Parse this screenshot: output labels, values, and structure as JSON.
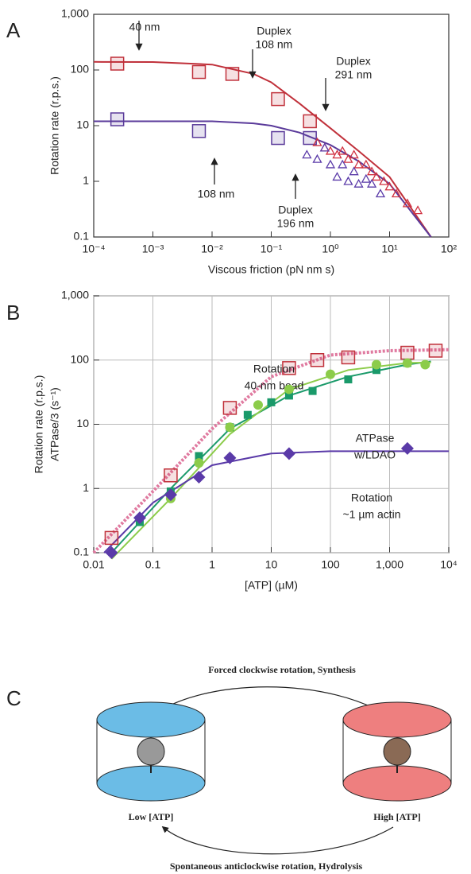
{
  "chart_data": [
    {
      "type": "scatter",
      "panel": "A",
      "ylabel": "Rotation rate (r.p.s.)",
      "xlabel": "Viscous friction (pN nm s)",
      "xscale": "log",
      "yscale": "log",
      "xlim": [
        0.0001,
        100
      ],
      "ylim": [
        0.1,
        1000
      ],
      "xticks": [
        {
          "value": 0.0001,
          "label": "10⁻⁴"
        },
        {
          "value": 0.001,
          "label": "10⁻³"
        },
        {
          "value": 0.01,
          "label": "10⁻²"
        },
        {
          "value": 0.1,
          "label": "10⁻¹"
        },
        {
          "value": 1,
          "label": "10⁰"
        },
        {
          "value": 10,
          "label": "10¹"
        },
        {
          "value": 100,
          "label": "10²"
        }
      ],
      "yticks": [
        0.1,
        1,
        10,
        100,
        {
          "value": 1000,
          "label": "1,000"
        }
      ],
      "grid": false,
      "series": [
        {
          "color": "#c0303a",
          "marker": "line",
          "x": [
            0.0001,
            0.001,
            0.01,
            0.05,
            0.1,
            0.3,
            1,
            3,
            10,
            50
          ],
          "values": [
            140,
            139,
            125,
            85,
            60,
            25,
            9,
            3.5,
            1.2,
            0.1
          ]
        },
        {
          "color": "#5a3a9a",
          "marker": "line",
          "x": [
            0.0001,
            0.001,
            0.01,
            0.05,
            0.1,
            0.3,
            1,
            3,
            10,
            50
          ],
          "values": [
            12,
            12,
            12,
            11,
            10,
            7.5,
            4.5,
            2.3,
            0.9,
            0.1
          ]
        },
        {
          "color": "#c0303a",
          "marker": "open-square",
          "x": [
            0.00025,
            0.006,
            0.022,
            0.13,
            0.45
          ],
          "values": [
            130,
            92,
            85,
            30,
            12
          ]
        },
        {
          "color": "#5a3a9a",
          "marker": "open-square",
          "x": [
            0.00025,
            0.006,
            0.13,
            0.45
          ],
          "values": [
            13,
            8,
            6,
            6
          ]
        },
        {
          "color": "#d03040",
          "marker": "triangle",
          "x": [
            0.6,
            0.8,
            1,
            1.3,
            1.6,
            2,
            2.5,
            3,
            4,
            5,
            6,
            8,
            10,
            13,
            20,
            30
          ],
          "values": [
            5,
            4,
            3.5,
            3,
            3.5,
            2.5,
            3,
            2,
            2,
            1.5,
            1.2,
            1,
            0.8,
            0.6,
            0.4,
            0.3
          ]
        },
        {
          "color": "#5a3aa8",
          "marker": "triangle",
          "x": [
            0.4,
            0.6,
            0.8,
            1,
            1.3,
            1.6,
            2,
            2.5,
            3,
            4,
            5,
            7
          ],
          "values": [
            3,
            2.5,
            4,
            2,
            1.2,
            2,
            1,
            1.5,
            0.9,
            1.1,
            0.9,
            0.6
          ]
        }
      ],
      "annotations": [
        {
          "lines": [
            "40 nm"
          ]
        },
        {
          "lines": [
            "Duplex",
            "108 nm"
          ]
        },
        {
          "lines": [
            "Duplex",
            "291 nm"
          ]
        },
        {
          "lines": [
            "108 nm"
          ]
        },
        {
          "lines": [
            "Duplex",
            "196 nm"
          ]
        }
      ]
    },
    {
      "type": "scatter",
      "panel": "B",
      "ylabel": [
        "Rotation rate (r.p.s.)",
        "ATPase/3 (s⁻¹)"
      ],
      "xlabel": "[ATP] (µM)",
      "xscale": "log",
      "yscale": "log",
      "xlim": [
        0.01,
        10000
      ],
      "ylim": [
        0.1,
        1000
      ],
      "xticks": [
        0.01,
        0.1,
        1,
        10,
        100,
        {
          "value": 1000,
          "label": "1,000"
        },
        {
          "value": 10000,
          "label": "10⁴"
        }
      ],
      "yticks": [
        0.1,
        1,
        10,
        100,
        {
          "value": 1000,
          "label": "1,000"
        }
      ],
      "grid": true,
      "series": [
        {
          "color": "#e07aa0",
          "marker": "dashed-line",
          "x": [
            0.01,
            0.1,
            1,
            10,
            100,
            1000,
            10000
          ],
          "values": [
            0.1,
            0.9,
            8.5,
            55,
            120,
            140,
            145
          ]
        },
        {
          "color": "#1a9a6a",
          "marker": "line",
          "x": [
            0.02,
            0.2,
            2,
            20,
            200,
            2000,
            5000
          ],
          "values": [
            0.1,
            1,
            8.5,
            28,
            55,
            85,
            95
          ]
        },
        {
          "color": "#8ccc4a",
          "marker": "line",
          "x": [
            0.02,
            0.2,
            2,
            20,
            200,
            2000,
            5000
          ],
          "values": [
            0.08,
            0.7,
            7,
            35,
            70,
            90,
            92
          ]
        },
        {
          "color": "#5a3aa8",
          "marker": "line",
          "x": [
            0.015,
            0.1,
            1,
            10,
            100,
            1000,
            10000
          ],
          "values": [
            0.1,
            0.6,
            2.3,
            3.5,
            3.8,
            3.8,
            3.8
          ]
        },
        {
          "color": "#c0303a",
          "marker": "open-square",
          "label": [
            "Rotation",
            "40-nm bead"
          ],
          "x": [
            0.02,
            0.2,
            2,
            20,
            60,
            200,
            2000,
            6000
          ],
          "values": [
            0.17,
            1.6,
            18,
            75,
            100,
            110,
            130,
            140
          ]
        },
        {
          "color": "#1a9a6a",
          "marker": "square",
          "label": [
            "ATPase"
          ],
          "x": [
            0.06,
            0.2,
            0.6,
            2,
            4,
            10,
            20,
            50,
            200,
            600,
            2000
          ],
          "values": [
            0.3,
            0.9,
            3.2,
            9,
            14,
            22,
            28,
            33,
            50,
            70,
            90
          ]
        },
        {
          "color": "#8ccc4a",
          "marker": "circle",
          "label": [
            "w/LDAO"
          ],
          "x": [
            0.2,
            0.6,
            2,
            6,
            20,
            100,
            600,
            2000,
            4000
          ],
          "values": [
            0.7,
            2.5,
            9,
            20,
            35,
            60,
            85,
            90,
            85
          ]
        },
        {
          "color": "#5a3aa8",
          "marker": "diamond",
          "label": [
            "Rotation",
            "~1 µm actin"
          ],
          "x": [
            0.02,
            0.06,
            0.2,
            0.6,
            2,
            20,
            2000
          ],
          "values": [
            0.1,
            0.35,
            0.8,
            1.5,
            3,
            3.5,
            4.2
          ]
        }
      ]
    }
  ],
  "diagram": {
    "panel": "C",
    "top_arrow": "Forced clockwise rotation, Synthesis",
    "left_label": "Low [ATP]",
    "right_label": "High [ATP]",
    "bottom_arrow": "Spontaneous anticlockwise rotation, Hydrolysis"
  }
}
